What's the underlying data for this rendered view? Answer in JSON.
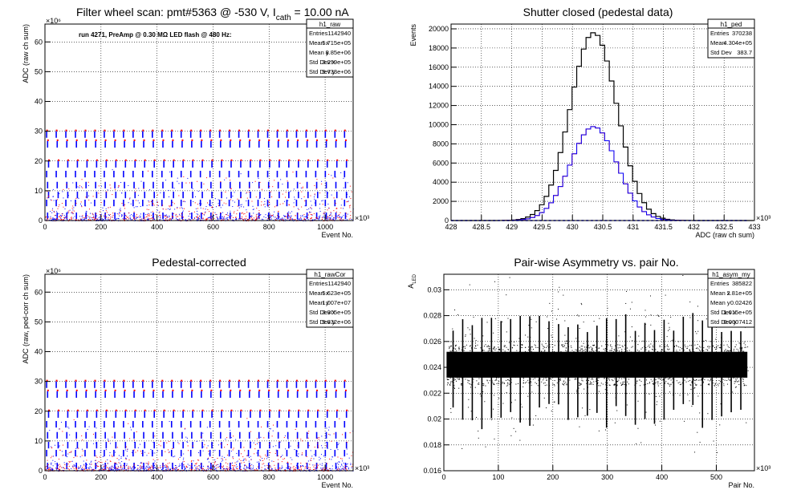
{
  "chart_data": [
    {
      "type": "scatter",
      "title_main": "Filter wheel scan: pmt#5363 @  -530 V, I",
      "title_sub": "cath",
      "title_tail": " = 10.00 nA",
      "annotation": "run 4271, PreAmp @ 0.30 MΩ LED flash @  480 Hz:",
      "xlabel": "Event No.",
      "ylabel": "ADC (raw ch sum)",
      "x_multiplier": "×10³",
      "y_multiplier": "×10⁶",
      "xlim": [
        0,
        1100
      ],
      "ylim": [
        0,
        66
      ],
      "xticks": [
        0,
        200,
        400,
        600,
        800,
        1000
      ],
      "yticks": [
        0,
        10,
        20,
        30,
        40,
        50,
        60
      ],
      "flash_levels": [
        30,
        27,
        20,
        17,
        13,
        10,
        7,
        3
      ],
      "stats": {
        "name": "h1_raw",
        "rows": [
          [
            "Entries",
            "1142940"
          ],
          [
            "Mean x",
            "5.715e+05"
          ],
          [
            "Mean y",
            "8.85e+06"
          ],
          [
            "Std Dev x",
            "3.299e+05"
          ],
          [
            "Std Dev y",
            "9.733e+06"
          ]
        ]
      },
      "colors": {
        "blue": "#0000ff",
        "red": "#ff0000"
      }
    },
    {
      "type": "histogram",
      "title": "Shutter closed (pedestal data)",
      "xlabel": "ADC (raw ch sum)",
      "ylabel": "Events",
      "x_multiplier": "×10³",
      "xlim": [
        428,
        433
      ],
      "ylim": [
        0,
        20500
      ],
      "xticks": [
        "428",
        "428.5",
        "429",
        "429.5",
        "430",
        "430.5",
        "431",
        "431.5",
        "432",
        "432.5",
        "433"
      ],
      "yticks": [
        0,
        2000,
        4000,
        6000,
        8000,
        10000,
        12000,
        14000,
        16000,
        18000,
        20000
      ],
      "bin_width": 0.0767,
      "series": [
        {
          "color": "#000000",
          "center": 430.35,
          "sigma": 0.384,
          "peak": 19600
        },
        {
          "color": "#ff0000",
          "center": 430.35,
          "sigma": 0.384,
          "peak": 9800
        },
        {
          "color": "#0000ff",
          "center": 430.35,
          "sigma": 0.384,
          "peak": 9800
        }
      ],
      "stats": {
        "name": "h1_ped",
        "rows": [
          [
            "Entries",
            "370238"
          ],
          [
            "Mean",
            "4.304e+05"
          ],
          [
            "Std Dev",
            "383.7"
          ]
        ]
      }
    },
    {
      "type": "scatter",
      "title": "Pedestal-corrected",
      "xlabel": "Event No.",
      "ylabel": "ADC (raw, ped-corr ch sum)",
      "x_multiplier": "×10³",
      "y_multiplier": "×10⁶",
      "xlim": [
        0,
        1100
      ],
      "ylim": [
        0,
        66
      ],
      "xticks": [
        0,
        200,
        400,
        600,
        800,
        1000
      ],
      "yticks": [
        0,
        10,
        20,
        30,
        40,
        50,
        60
      ],
      "flash_levels": [
        30,
        27,
        20,
        17,
        13,
        10,
        7,
        3
      ],
      "stats": {
        "name": "h1_rawCor",
        "rows": [
          [
            "Entries",
            "1142940"
          ],
          [
            "Mean x",
            "5.623e+05"
          ],
          [
            "Mean y",
            "1.007e+07"
          ],
          [
            "Std Dev x",
            "3.305e+05"
          ],
          [
            "Std Dev y",
            "9.832e+06"
          ]
        ]
      }
    },
    {
      "type": "scatter",
      "title": "Pair-wise Asymmetry vs. pair No.",
      "xlabel": "Pair No.",
      "ylabel_main": "A",
      "ylabel_sub": "LED",
      "x_multiplier": "×10³",
      "xlim": [
        0,
        570
      ],
      "ylim": [
        0.016,
        0.0312
      ],
      "xticks": [
        0,
        100,
        200,
        300,
        400,
        500
      ],
      "yticks": [
        "0.016",
        "0.018",
        "0.02",
        "0.022",
        "0.024",
        "0.026",
        "0.028",
        "0.03"
      ],
      "band_center": 0.0242,
      "band_halfwidth": 0.001,
      "stats": {
        "name": "h1_asym_my",
        "rows": [
          [
            "Entries",
            "385822"
          ],
          [
            "Mean x",
            "2.81e+05"
          ],
          [
            "Mean y",
            "0.02426"
          ],
          [
            "Std Dev x",
            "1.615e+05"
          ],
          [
            "Std Dev y",
            "0.0007412"
          ]
        ]
      }
    }
  ]
}
